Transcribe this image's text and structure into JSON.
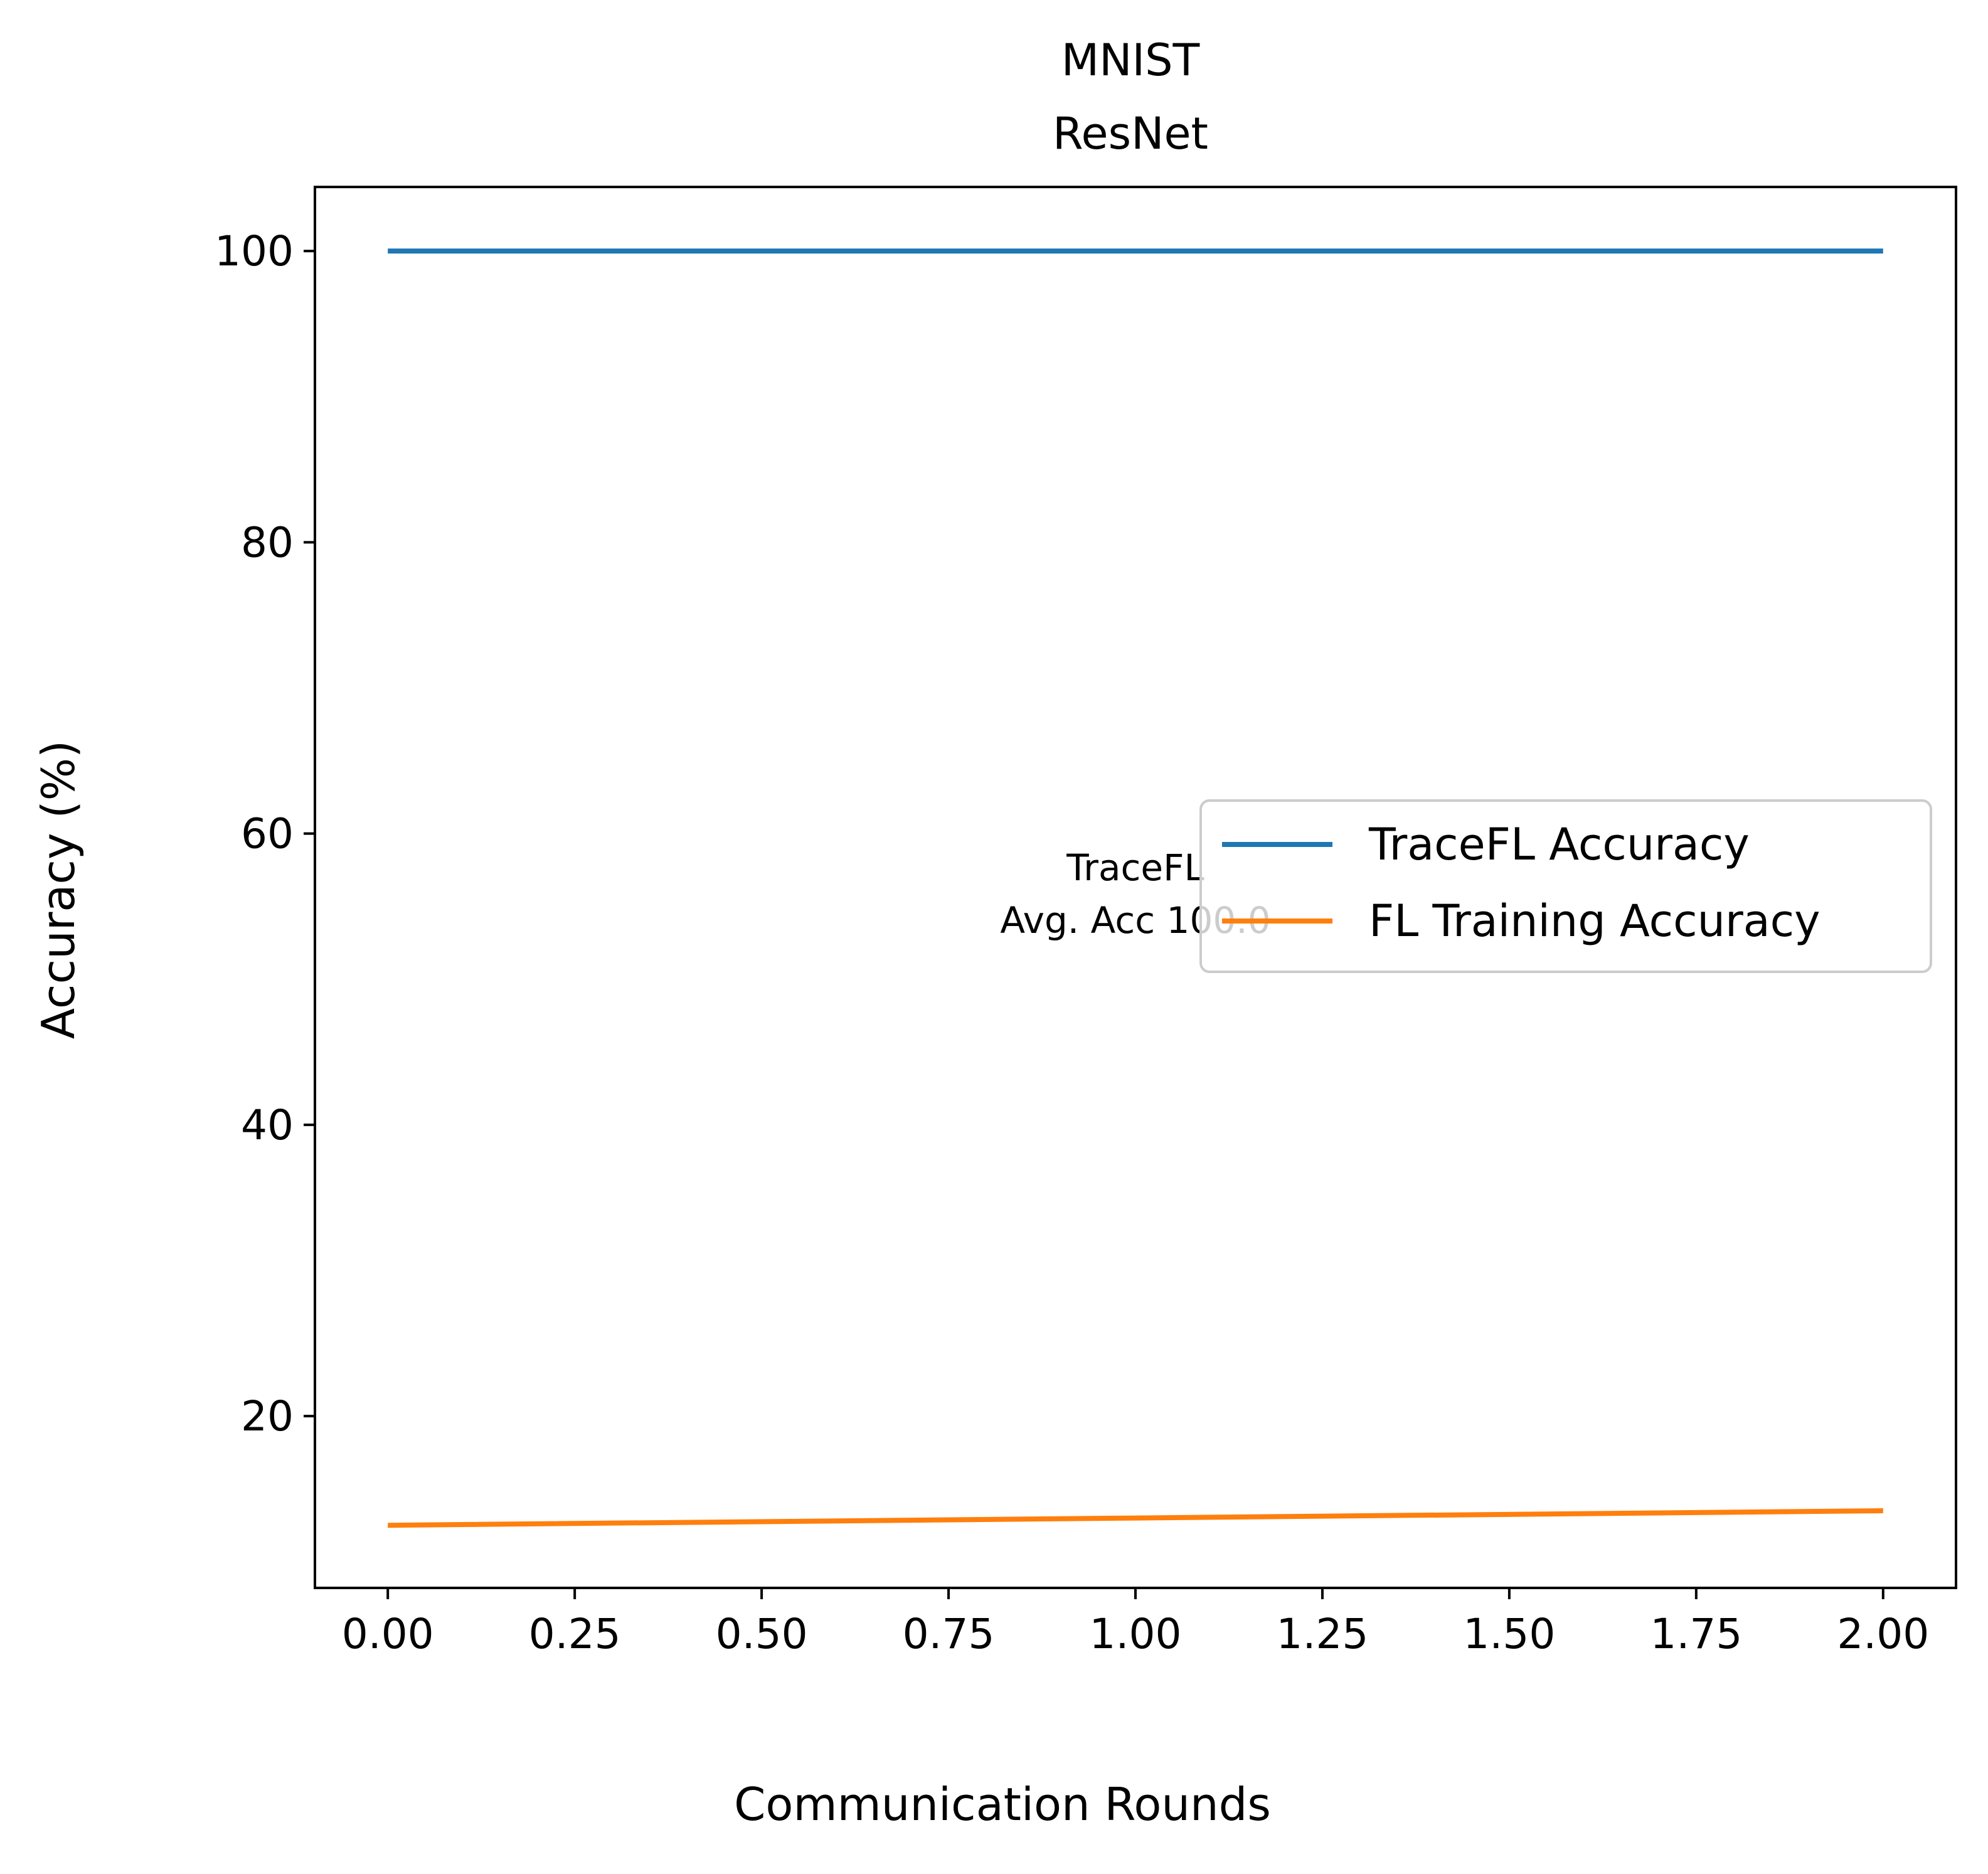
{
  "chart_data": {
    "type": "line",
    "title": "MNIST",
    "subtitle": "ResNet",
    "xlabel": "Communication Rounds",
    "ylabel": "Accuracy (%)",
    "xlim": [
      -0.0975,
      2.0975
    ],
    "ylim": [
      8.2,
      104.4
    ],
    "xticks": [
      0.0,
      0.25,
      0.5,
      0.75,
      1.0,
      1.25,
      1.5,
      1.75,
      2.0
    ],
    "xtick_labels": [
      "0.00",
      "0.25",
      "0.50",
      "0.75",
      "1.00",
      "1.25",
      "1.50",
      "1.75",
      "2.00"
    ],
    "yticks": [
      20,
      40,
      60,
      80,
      100
    ],
    "ytick_labels": [
      "20",
      "40",
      "60",
      "80",
      "100"
    ],
    "grid": false,
    "legend_position": "center-right",
    "series": [
      {
        "name": "TraceFL Accuracy",
        "color": "#1f77b4",
        "x": [
          0,
          1,
          2
        ],
        "values": [
          100.0,
          100.0,
          100.0
        ]
      },
      {
        "name": "FL Training Accuracy",
        "color": "#ff7f0e",
        "x": [
          0,
          1,
          2
        ],
        "values": [
          12.5,
          13.0,
          13.5
        ]
      }
    ],
    "annotation": {
      "lines": [
        "TraceFL",
        "Avg. Acc 100.0"
      ],
      "x": 1.0,
      "y": 55.5
    }
  }
}
